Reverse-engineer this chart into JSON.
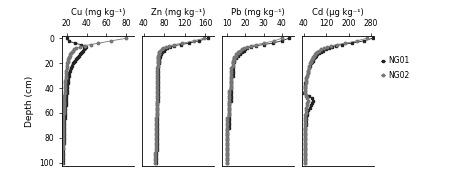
{
  "depth": [
    0,
    2,
    4,
    5,
    6,
    7,
    8,
    9,
    10,
    11,
    12,
    13,
    14,
    15,
    16,
    17,
    18,
    19,
    20,
    22,
    24,
    26,
    28,
    30,
    32,
    34,
    36,
    38,
    40,
    42,
    44,
    46,
    48,
    50,
    52,
    54,
    56,
    58,
    60,
    62,
    64,
    66,
    68,
    70,
    72,
    74,
    76,
    78,
    80,
    82,
    84,
    86,
    88,
    90,
    92,
    94,
    96,
    98,
    100
  ],
  "Cu_NG01": [
    20,
    22,
    28,
    34,
    37,
    39,
    38,
    37,
    36,
    35,
    34,
    33,
    32,
    31,
    30,
    29,
    28,
    27,
    26,
    25,
    24,
    23,
    22,
    22,
    21,
    21,
    21,
    20,
    20,
    20,
    20,
    19,
    19,
    19,
    19,
    19,
    18,
    18,
    18,
    18,
    18,
    17,
    17,
    17,
    17,
    17,
    17,
    17,
    17,
    17,
    17,
    16,
    16,
    16,
    16,
    16,
    16,
    16,
    16
  ],
  "Cu_NG02": [
    80,
    65,
    52,
    44,
    38,
    33,
    29,
    27,
    26,
    25,
    24,
    23,
    23,
    22,
    22,
    21,
    21,
    21,
    20,
    20,
    20,
    19,
    19,
    19,
    19,
    18,
    18,
    18,
    18,
    18,
    18,
    17,
    17,
    17,
    17,
    17,
    17,
    17,
    17,
    16,
    16,
    16,
    16,
    16,
    16,
    16,
    16,
    16,
    16,
    16,
    16,
    16,
    16,
    15,
    15,
    15,
    15,
    15,
    15
  ],
  "Zn_NG01": [
    165,
    148,
    128,
    112,
    100,
    92,
    86,
    82,
    79,
    76,
    74,
    73,
    72,
    71,
    70,
    70,
    69,
    69,
    69,
    68,
    68,
    68,
    68,
    68,
    67,
    67,
    67,
    67,
    67,
    67,
    67,
    67,
    67,
    67,
    66,
    66,
    66,
    66,
    66,
    66,
    66,
    66,
    66,
    66,
    65,
    65,
    65,
    65,
    65,
    65,
    65,
    65,
    65,
    65,
    64,
    64,
    64,
    64,
    64
  ],
  "Zn_NG02": [
    158,
    138,
    115,
    100,
    90,
    83,
    78,
    75,
    72,
    70,
    69,
    69,
    68,
    68,
    67,
    67,
    67,
    67,
    67,
    67,
    66,
    66,
    66,
    66,
    66,
    66,
    66,
    66,
    66,
    65,
    65,
    65,
    65,
    65,
    65,
    65,
    65,
    65,
    65,
    65,
    64,
    64,
    64,
    64,
    64,
    64,
    64,
    64,
    64,
    64,
    64,
    64,
    64,
    64,
    63,
    63,
    63,
    63,
    63
  ],
  "Pb_NG01": [
    44,
    40,
    35,
    30,
    26,
    23,
    21,
    20,
    19,
    18,
    17,
    17,
    16,
    15,
    15,
    14,
    14,
    14,
    13,
    13,
    13,
    13,
    13,
    13,
    12,
    12,
    12,
    12,
    12,
    12,
    12,
    12,
    12,
    12,
    11,
    11,
    11,
    11,
    11,
    11,
    11,
    11,
    11,
    11,
    11,
    10,
    10,
    10,
    10,
    10,
    10,
    10,
    10,
    10,
    10,
    10,
    10,
    10,
    10
  ],
  "Pb_NG02": [
    40,
    36,
    30,
    26,
    23,
    21,
    19,
    18,
    17,
    16,
    16,
    15,
    15,
    14,
    14,
    14,
    13,
    13,
    13,
    13,
    12,
    12,
    12,
    12,
    12,
    12,
    12,
    12,
    12,
    11,
    11,
    11,
    11,
    11,
    11,
    11,
    11,
    11,
    11,
    11,
    10,
    10,
    10,
    10,
    10,
    10,
    10,
    10,
    10,
    10,
    10,
    10,
    10,
    10,
    10,
    10,
    10,
    10,
    10
  ],
  "Cd_NG01": [
    285,
    255,
    210,
    175,
    155,
    140,
    128,
    118,
    108,
    100,
    93,
    87,
    83,
    80,
    77,
    74,
    71,
    68,
    65,
    62,
    59,
    56,
    54,
    51,
    49,
    47,
    45,
    44,
    43,
    42,
    41,
    57,
    68,
    72,
    70,
    65,
    60,
    56,
    52,
    50,
    48,
    47,
    46,
    46,
    45,
    45,
    44,
    44,
    44,
    44,
    44,
    44,
    43,
    43,
    43,
    43,
    43,
    43,
    43
  ],
  "Cd_NG02": [
    265,
    230,
    188,
    158,
    138,
    122,
    110,
    102,
    94,
    88,
    84,
    80,
    77,
    74,
    71,
    68,
    66,
    64,
    62,
    59,
    57,
    55,
    53,
    51,
    49,
    47,
    46,
    45,
    44,
    43,
    43,
    46,
    50,
    53,
    52,
    50,
    48,
    47,
    46,
    45,
    45,
    44,
    44,
    44,
    43,
    43,
    43,
    43,
    43,
    42,
    42,
    42,
    42,
    42,
    42,
    42,
    42,
    42,
    42
  ],
  "Cu_xlim": [
    15,
    88
  ],
  "Cu_xticks": [
    20,
    40,
    60,
    80
  ],
  "Zn_xlim": [
    36,
    178
  ],
  "Zn_xticks": [
    40,
    80,
    120,
    160
  ],
  "Pb_xlim": [
    7,
    47
  ],
  "Pb_xticks": [
    10,
    20,
    30,
    40
  ],
  "Cd_xlim": [
    32,
    292
  ],
  "Cd_xticks": [
    40,
    120,
    200,
    280
  ],
  "ylim": [
    103,
    -2
  ],
  "yticks": [
    0,
    20,
    40,
    60,
    80,
    100
  ],
  "Cu_title": "Cu (mg kg⁻¹)",
  "Zn_title": "Zn (mg kg⁻¹)",
  "Pb_title": "Pb (mg kg⁻¹)",
  "Cd_title": "Cd (μg kg⁻¹)",
  "color_NG01": "#222222",
  "color_NG02": "#777777",
  "marker_NG01": "s",
  "marker_NG02": "o",
  "linewidth": 0.6,
  "markersize_NG01": 1.8,
  "markersize_NG02": 1.8,
  "legend_labels": [
    "NG01",
    "NG02"
  ],
  "ylabel": "Depth (cm)",
  "background_color": "#ffffff",
  "title_fontsize": 6.0,
  "tick_fontsize": 5.5,
  "ylabel_fontsize": 6.5
}
